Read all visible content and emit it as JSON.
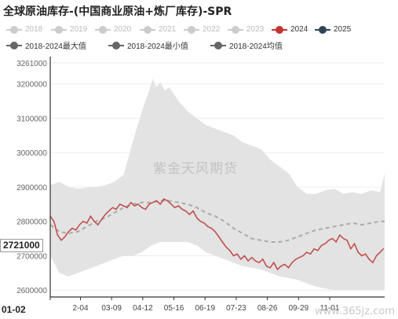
{
  "title": "全球原油库存-(中国商业原油+炼厂库存)-SPR",
  "watermark": "紫金天风期货",
  "site": "www.365jz.com",
  "latest_value": "2721000",
  "first_x_label": "01-02",
  "legend": [
    {
      "label": "2018",
      "color": "#cccccc",
      "active": false
    },
    {
      "label": "2019",
      "color": "#cccccc",
      "active": false
    },
    {
      "label": "2020",
      "color": "#cccccc",
      "active": false
    },
    {
      "label": "2021",
      "color": "#cccccc",
      "active": false
    },
    {
      "label": "2022",
      "color": "#cccccc",
      "active": false
    },
    {
      "label": "2023",
      "color": "#cccccc",
      "active": false
    },
    {
      "label": "2024",
      "color": "#c23531",
      "active": true
    },
    {
      "label": "2025",
      "color": "#2f4554",
      "active": true
    },
    {
      "label": "2018-2024最大值",
      "color": "#666666",
      "active": true
    },
    {
      "label": "2018-2024最小值",
      "color": "#666666",
      "active": true
    },
    {
      "label": "2018-2024均值",
      "color": "#666666",
      "active": true
    }
  ],
  "chart_data": {
    "type": "line",
    "title": "全球原油库存-(中国商业原油+炼厂库存)-SPR",
    "ylim": [
      2580000,
      3261000
    ],
    "y_ticks": [
      2600000,
      2700000,
      2800000,
      2900000,
      3000000,
      3100000,
      3200000,
      3261000
    ],
    "x_tick_labels": [
      "01-02",
      "2-04",
      "03-09",
      "04-12",
      "05-16",
      "06-19",
      "07-23",
      "08-26",
      "09-29",
      "11-01"
    ],
    "x_tick_days": [
      0,
      33,
      67,
      101,
      135,
      169,
      203,
      237,
      271,
      305
    ],
    "x_range": [
      0,
      365
    ],
    "grid": true,
    "series": [
      {
        "name": "2018-2024最大值",
        "x": [
          0,
          10,
          20,
          30,
          40,
          50,
          60,
          70,
          80,
          90,
          100,
          108,
          112,
          116,
          120,
          125,
          130,
          140,
          150,
          160,
          170,
          180,
          190,
          200,
          210,
          220,
          230,
          240,
          250,
          260,
          270,
          280,
          290,
          300,
          310,
          320,
          330,
          340,
          350,
          360,
          365
        ],
        "values": [
          2905000,
          2915000,
          2900000,
          2895000,
          2898000,
          2900000,
          2905000,
          2915000,
          2935000,
          3030000,
          3120000,
          3180000,
          3215000,
          3190000,
          3205000,
          3180000,
          3190000,
          3150000,
          3120000,
          3100000,
          3080000,
          3070000,
          3060000,
          3050000,
          3030000,
          3020000,
          3010000,
          2980000,
          2960000,
          2940000,
          2900000,
          2880000,
          2880000,
          2890000,
          2895000,
          2880000,
          2885000,
          2880000,
          2890000,
          2885000,
          2940000
        ]
      },
      {
        "name": "2018-2024最小值",
        "x": [
          0,
          10,
          20,
          30,
          40,
          50,
          60,
          70,
          80,
          90,
          100,
          110,
          120,
          130,
          140,
          150,
          160,
          170,
          180,
          190,
          200,
          210,
          220,
          230,
          240,
          250,
          260,
          270,
          280,
          290,
          300,
          310,
          320,
          330,
          340,
          350,
          360,
          365
        ],
        "values": [
          2700000,
          2650000,
          2640000,
          2650000,
          2660000,
          2670000,
          2680000,
          2690000,
          2700000,
          2700000,
          2710000,
          2730000,
          2740000,
          2740000,
          2740000,
          2740000,
          2730000,
          2710000,
          2700000,
          2690000,
          2680000,
          2670000,
          2665000,
          2660000,
          2650000,
          2640000,
          2635000,
          2630000,
          2620000,
          2610000,
          2605000,
          2600000,
          2600000,
          2600000,
          2600000,
          2600000,
          2600000,
          2600000
        ]
      },
      {
        "name": "2018-2024均值",
        "x": [
          0,
          10,
          20,
          30,
          40,
          50,
          60,
          70,
          80,
          90,
          100,
          110,
          120,
          130,
          140,
          150,
          160,
          170,
          180,
          190,
          200,
          210,
          220,
          230,
          240,
          250,
          260,
          270,
          280,
          290,
          300,
          310,
          320,
          330,
          340,
          350,
          360,
          365
        ],
        "values": [
          2790000,
          2770000,
          2765000,
          2770000,
          2785000,
          2800000,
          2810000,
          2825000,
          2840000,
          2850000,
          2855000,
          2855000,
          2860000,
          2860000,
          2855000,
          2850000,
          2840000,
          2825000,
          2815000,
          2800000,
          2780000,
          2765000,
          2750000,
          2745000,
          2740000,
          2740000,
          2745000,
          2755000,
          2765000,
          2775000,
          2780000,
          2785000,
          2790000,
          2795000,
          2790000,
          2795000,
          2800000,
          2800000
        ]
      },
      {
        "name": "2024",
        "x": [
          0,
          4,
          8,
          12,
          16,
          20,
          24,
          28,
          32,
          36,
          40,
          44,
          48,
          52,
          56,
          60,
          64,
          68,
          72,
          76,
          80,
          84,
          88,
          92,
          96,
          100,
          104,
          108,
          112,
          116,
          120,
          124,
          128,
          132,
          136,
          140,
          144,
          148,
          152,
          156,
          160,
          164,
          168,
          172,
          176,
          180,
          184,
          188,
          192,
          196,
          200,
          204,
          208,
          212,
          216,
          220,
          224,
          228,
          232,
          236,
          240,
          244,
          248,
          252,
          256,
          260,
          264,
          268,
          272,
          276,
          280,
          284,
          288,
          292,
          296,
          300,
          304,
          308,
          312,
          316,
          320,
          324,
          328,
          332,
          336,
          340,
          344,
          348,
          352,
          356,
          360,
          364
        ],
        "values": [
          2815000,
          2800000,
          2760000,
          2745000,
          2755000,
          2770000,
          2780000,
          2775000,
          2790000,
          2800000,
          2795000,
          2815000,
          2800000,
          2790000,
          2805000,
          2820000,
          2830000,
          2840000,
          2835000,
          2850000,
          2845000,
          2840000,
          2855000,
          2845000,
          2850000,
          2840000,
          2835000,
          2850000,
          2855000,
          2860000,
          2850000,
          2865000,
          2860000,
          2850000,
          2840000,
          2845000,
          2835000,
          2830000,
          2820000,
          2830000,
          2810000,
          2800000,
          2795000,
          2785000,
          2780000,
          2770000,
          2755000,
          2740000,
          2725000,
          2715000,
          2700000,
          2705000,
          2690000,
          2700000,
          2685000,
          2695000,
          2685000,
          2680000,
          2690000,
          2670000,
          2665000,
          2680000,
          2660000,
          2670000,
          2675000,
          2665000,
          2680000,
          2690000,
          2695000,
          2700000,
          2710000,
          2705000,
          2720000,
          2715000,
          2730000,
          2735000,
          2745000,
          2750000,
          2740000,
          2760000,
          2750000,
          2745000,
          2720000,
          2735000,
          2710000,
          2700000,
          2705000,
          2690000,
          2680000,
          2700000,
          2710000,
          2721000
        ]
      }
    ]
  }
}
